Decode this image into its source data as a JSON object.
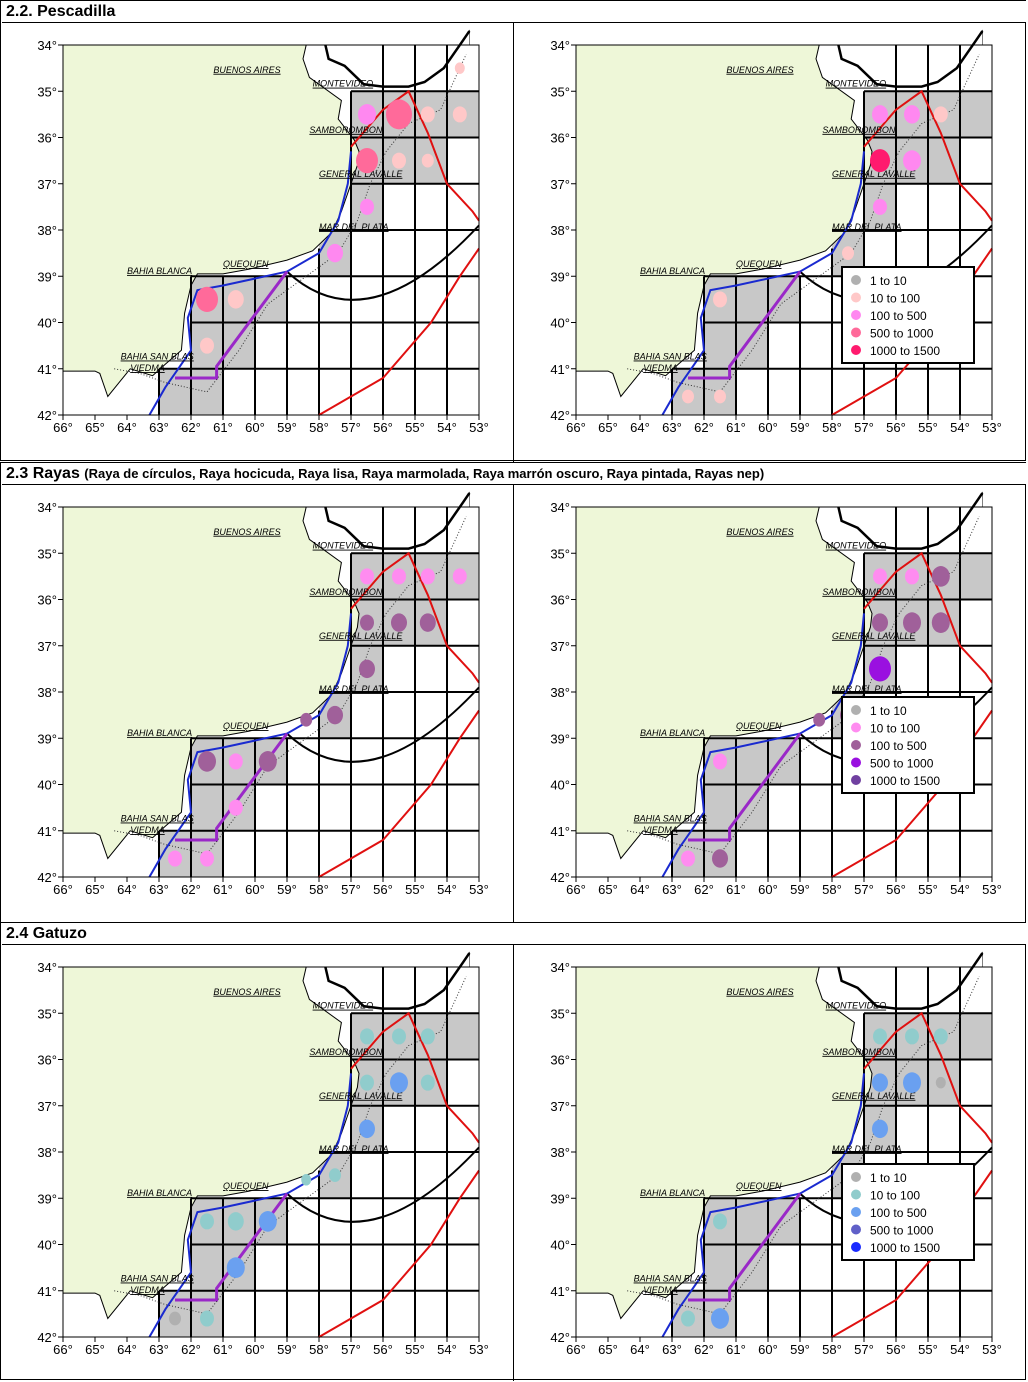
{
  "sections": [
    {
      "title": "2.2. Pescadilla",
      "subtitle": "",
      "legend": {
        "items": [
          {
            "label": "1  to  10",
            "color": "#b0b0b0"
          },
          {
            "label": "10  to  100",
            "color": "#ffc8c8"
          },
          {
            "label": "100  to  500",
            "color": "#ff88f0"
          },
          {
            "label": "500  to  1000",
            "color": "#ff6a9a"
          },
          {
            "label": "1000  to  1500",
            "color": "#ff1a6e"
          }
        ]
      },
      "left_points": [
        {
          "lon": -55.5,
          "lat": -35.5,
          "cls": 3,
          "r": 13
        },
        {
          "lon": -56.5,
          "lat": -35.5,
          "cls": 2,
          "r": 9
        },
        {
          "lon": -54.6,
          "lat": -35.5,
          "cls": 1,
          "r": 7
        },
        {
          "lon": -53.6,
          "lat": -35.5,
          "cls": 1,
          "r": 7
        },
        {
          "lon": -56.5,
          "lat": -36.5,
          "cls": 3,
          "r": 11
        },
        {
          "lon": -55.5,
          "lat": -36.5,
          "cls": 1,
          "r": 7
        },
        {
          "lon": -54.6,
          "lat": -36.5,
          "cls": 1,
          "r": 6
        },
        {
          "lon": -56.5,
          "lat": -37.5,
          "cls": 2,
          "r": 7
        },
        {
          "lon": -57.5,
          "lat": -38.5,
          "cls": 2,
          "r": 8
        },
        {
          "lon": -61.5,
          "lat": -39.5,
          "cls": 3,
          "r": 11
        },
        {
          "lon": -60.6,
          "lat": -39.5,
          "cls": 1,
          "r": 8
        },
        {
          "lon": -61.5,
          "lat": -40.5,
          "cls": 1,
          "r": 7
        },
        {
          "lon": -53.6,
          "lat": -34.5,
          "cls": 1,
          "r": 5
        }
      ],
      "right_points": [
        {
          "lon": -56.5,
          "lat": -35.5,
          "cls": 2,
          "r": 8
        },
        {
          "lon": -55.5,
          "lat": -35.5,
          "cls": 2,
          "r": 8
        },
        {
          "lon": -54.6,
          "lat": -35.5,
          "cls": 1,
          "r": 7
        },
        {
          "lon": -56.5,
          "lat": -36.5,
          "cls": 4,
          "r": 10
        },
        {
          "lon": -55.5,
          "lat": -36.5,
          "cls": 2,
          "r": 9
        },
        {
          "lon": -56.5,
          "lat": -37.5,
          "cls": 2,
          "r": 7
        },
        {
          "lon": -57.5,
          "lat": -38.5,
          "cls": 1,
          "r": 6
        },
        {
          "lon": -61.5,
          "lat": -39.5,
          "cls": 1,
          "r": 7
        },
        {
          "lon": -62.5,
          "lat": -41.6,
          "cls": 1,
          "r": 6
        },
        {
          "lon": -61.5,
          "lat": -41.6,
          "cls": 1,
          "r": 6
        }
      ]
    },
    {
      "title": "2.3 Rayas",
      "subtitle": "(Raya de círculos, Raya hocicuda, Raya lisa, Raya marmolada, Raya marrón oscuro, Raya pintada, Rayas nep)",
      "legend": {
        "items": [
          {
            "label": "1  to  10",
            "color": "#b0b0b0"
          },
          {
            "label": "10  to  100",
            "color": "#ff8cf0"
          },
          {
            "label": "100  to  500",
            "color": "#a0609a"
          },
          {
            "label": "500  to  1000",
            "color": "#9a10e0"
          },
          {
            "label": "1000  to  1500",
            "color": "#7040a0"
          }
        ]
      },
      "left_points": [
        {
          "lon": -56.5,
          "lat": -35.5,
          "cls": 1,
          "r": 7
        },
        {
          "lon": -55.5,
          "lat": -35.5,
          "cls": 1,
          "r": 7
        },
        {
          "lon": -54.6,
          "lat": -35.5,
          "cls": 1,
          "r": 7
        },
        {
          "lon": -53.6,
          "lat": -35.5,
          "cls": 1,
          "r": 7
        },
        {
          "lon": -56.5,
          "lat": -36.5,
          "cls": 2,
          "r": 7
        },
        {
          "lon": -55.5,
          "lat": -36.5,
          "cls": 2,
          "r": 8
        },
        {
          "lon": -54.6,
          "lat": -36.5,
          "cls": 2,
          "r": 8
        },
        {
          "lon": -56.5,
          "lat": -37.5,
          "cls": 2,
          "r": 8
        },
        {
          "lon": -57.5,
          "lat": -38.5,
          "cls": 2,
          "r": 8
        },
        {
          "lon": -58.4,
          "lat": -38.6,
          "cls": 2,
          "r": 6
        },
        {
          "lon": -61.5,
          "lat": -39.5,
          "cls": 2,
          "r": 9
        },
        {
          "lon": -60.6,
          "lat": -39.5,
          "cls": 1,
          "r": 7
        },
        {
          "lon": -59.6,
          "lat": -39.5,
          "cls": 2,
          "r": 9
        },
        {
          "lon": -60.6,
          "lat": -40.5,
          "cls": 1,
          "r": 7
        },
        {
          "lon": -62.5,
          "lat": -41.6,
          "cls": 1,
          "r": 7
        },
        {
          "lon": -61.5,
          "lat": -41.6,
          "cls": 1,
          "r": 7
        }
      ],
      "right_points": [
        {
          "lon": -56.5,
          "lat": -35.5,
          "cls": 1,
          "r": 7
        },
        {
          "lon": -55.5,
          "lat": -35.5,
          "cls": 1,
          "r": 7
        },
        {
          "lon": -54.6,
          "lat": -35.5,
          "cls": 2,
          "r": 9
        },
        {
          "lon": -56.5,
          "lat": -36.5,
          "cls": 2,
          "r": 8
        },
        {
          "lon": -55.5,
          "lat": -36.5,
          "cls": 2,
          "r": 9
        },
        {
          "lon": -54.6,
          "lat": -36.5,
          "cls": 2,
          "r": 9
        },
        {
          "lon": -56.5,
          "lat": -37.5,
          "cls": 3,
          "r": 11
        },
        {
          "lon": -57.5,
          "lat": -38.5,
          "cls": 2,
          "r": 8
        },
        {
          "lon": -58.4,
          "lat": -38.6,
          "cls": 2,
          "r": 6
        },
        {
          "lon": -61.5,
          "lat": -39.5,
          "cls": 1,
          "r": 7
        },
        {
          "lon": -62.5,
          "lat": -41.6,
          "cls": 1,
          "r": 7
        },
        {
          "lon": -61.5,
          "lat": -41.6,
          "cls": 2,
          "r": 8
        }
      ]
    },
    {
      "title": "2.4 Gatuzo",
      "subtitle": "",
      "legend": {
        "items": [
          {
            "label": "1  to  10",
            "color": "#b0b0b0"
          },
          {
            "label": "10  to  100",
            "color": "#90cccc"
          },
          {
            "label": "100  to  500",
            "color": "#6aa0f0"
          },
          {
            "label": "500  to  1000",
            "color": "#6060c8"
          },
          {
            "label": "1000  to  1500",
            "color": "#1a2aff"
          }
        ]
      },
      "left_points": [
        {
          "lon": -56.5,
          "lat": -35.5,
          "cls": 1,
          "r": 7
        },
        {
          "lon": -55.5,
          "lat": -35.5,
          "cls": 1,
          "r": 7
        },
        {
          "lon": -54.6,
          "lat": -35.5,
          "cls": 1,
          "r": 7
        },
        {
          "lon": -56.5,
          "lat": -36.5,
          "cls": 1,
          "r": 7
        },
        {
          "lon": -55.5,
          "lat": -36.5,
          "cls": 2,
          "r": 9
        },
        {
          "lon": -54.6,
          "lat": -36.5,
          "cls": 1,
          "r": 7
        },
        {
          "lon": -56.5,
          "lat": -37.5,
          "cls": 2,
          "r": 8
        },
        {
          "lon": -57.5,
          "lat": -38.5,
          "cls": 1,
          "r": 6
        },
        {
          "lon": -58.4,
          "lat": -38.6,
          "cls": 1,
          "r": 5
        },
        {
          "lon": -61.5,
          "lat": -39.5,
          "cls": 1,
          "r": 7
        },
        {
          "lon": -60.6,
          "lat": -39.5,
          "cls": 1,
          "r": 8
        },
        {
          "lon": -59.6,
          "lat": -39.5,
          "cls": 2,
          "r": 9
        },
        {
          "lon": -60.6,
          "lat": -40.5,
          "cls": 2,
          "r": 9
        },
        {
          "lon": -61.5,
          "lat": -41.6,
          "cls": 1,
          "r": 7
        },
        {
          "lon": -62.5,
          "lat": -41.6,
          "cls": 0,
          "r": 6
        }
      ],
      "right_points": [
        {
          "lon": -56.5,
          "lat": -35.5,
          "cls": 1,
          "r": 7
        },
        {
          "lon": -55.5,
          "lat": -35.5,
          "cls": 1,
          "r": 7
        },
        {
          "lon": -54.6,
          "lat": -35.5,
          "cls": 1,
          "r": 7
        },
        {
          "lon": -56.5,
          "lat": -36.5,
          "cls": 2,
          "r": 8
        },
        {
          "lon": -55.5,
          "lat": -36.5,
          "cls": 2,
          "r": 9
        },
        {
          "lon": -54.6,
          "lat": -36.5,
          "cls": 0,
          "r": 5
        },
        {
          "lon": -56.5,
          "lat": -37.5,
          "cls": 2,
          "r": 8
        },
        {
          "lon": -57.5,
          "lat": -38.5,
          "cls": 1,
          "r": 6
        },
        {
          "lon": -61.5,
          "lat": -39.5,
          "cls": 1,
          "r": 7
        },
        {
          "lon": -62.5,
          "lat": -41.6,
          "cls": 1,
          "r": 7
        },
        {
          "lon": -61.5,
          "lat": -41.6,
          "cls": 2,
          "r": 9
        }
      ]
    }
  ],
  "map": {
    "lat_ticks": [
      "34°",
      "35°",
      "36°",
      "37°",
      "38°",
      "39°",
      "40°",
      "41°",
      "42°"
    ],
    "lon_ticks": [
      "66°",
      "65°",
      "64°",
      "63°",
      "62°",
      "61°",
      "60°",
      "59°",
      "58°",
      "57°",
      "56°",
      "55°",
      "54°",
      "53°"
    ],
    "place_labels": [
      "BUENOS AIRES",
      "MONTEVIDEO",
      "SAMBOROMBON",
      "GENERAL LAVALLE",
      "MAR DEL PLATA",
      "QUEQUEN",
      "BAHIA BLANCA",
      "BAHIA SAN BLAS",
      "VIEDMA"
    ],
    "colors": {
      "land": "#eef7d8",
      "sea": "#ffffff",
      "shade": "#c8c8c8",
      "grid": "#000000",
      "blue_line": "#1a2ad0",
      "purple_line": "#9a28c8",
      "red_line": "#e01010",
      "arc": "#000000"
    }
  }
}
